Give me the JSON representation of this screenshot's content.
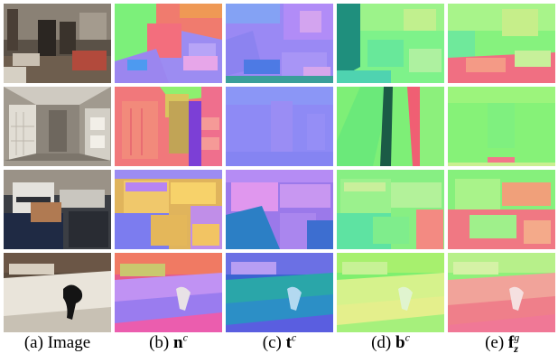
{
  "figure": {
    "columns": [
      {
        "id": "image",
        "label": "(a) Image",
        "prefix": "(a)",
        "symbol": "Image",
        "sup": "",
        "sub": ""
      },
      {
        "id": "normal",
        "label": "(b) n^c",
        "prefix": "(b)",
        "symbol": "n",
        "sup": "c",
        "sub": ""
      },
      {
        "id": "tangent",
        "label": "(c) t^c",
        "prefix": "(c)",
        "symbol": "t",
        "sup": "c",
        "sub": ""
      },
      {
        "id": "bitangent",
        "label": "(d) b^c",
        "prefix": "(d)",
        "symbol": "b",
        "sup": "c",
        "sub": ""
      },
      {
        "id": "fz",
        "label": "(e) f_z^g",
        "prefix": "(e)",
        "symbol": "f",
        "sup": "g",
        "sub": "z"
      }
    ],
    "rows": [
      "living-room",
      "hallway",
      "office",
      "bedroom"
    ]
  }
}
